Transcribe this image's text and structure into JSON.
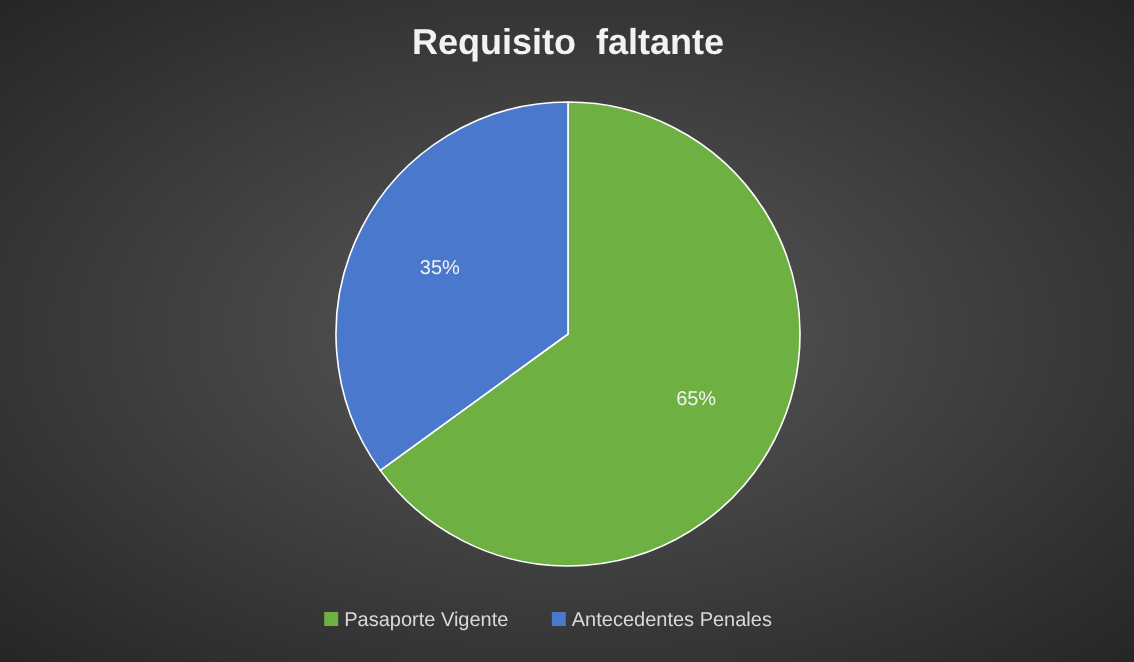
{
  "chart_data": {
    "type": "pie",
    "title": "Requisito  faltante",
    "categories": [
      "Pasaporte Vigente",
      "Antecedentes Penales"
    ],
    "values": [
      65,
      35
    ],
    "colors": [
      "#6fb043",
      "#4a78cc"
    ],
    "value_labels": [
      "65%",
      "35%"
    ],
    "legend": "bottom"
  }
}
